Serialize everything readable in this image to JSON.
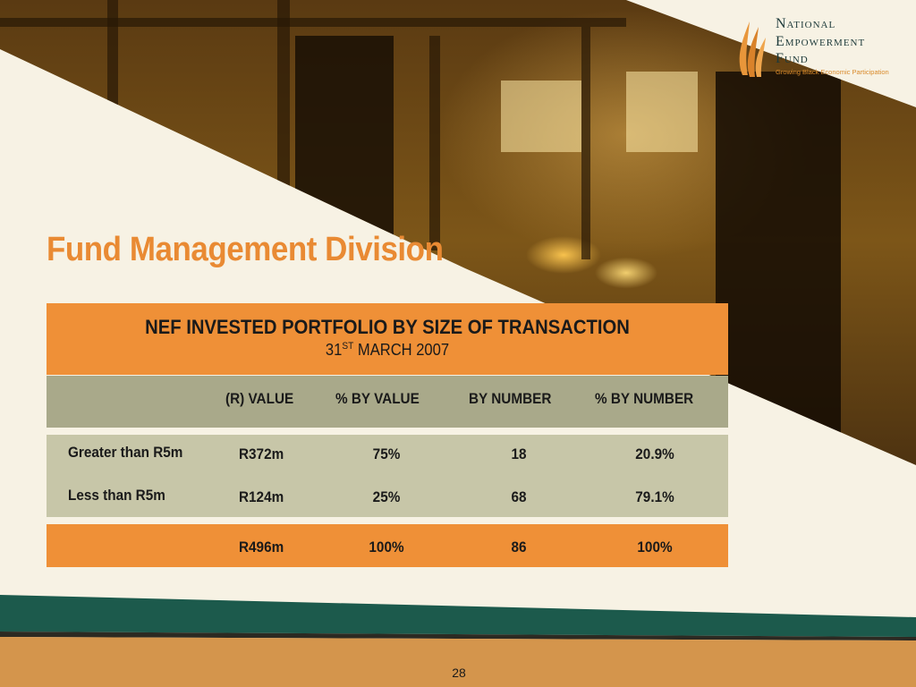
{
  "logo": {
    "line1": "National",
    "line2": "Empowerment",
    "line3": "Fund",
    "tagline": "Growing Black Economic Participation",
    "icon": "flame-logo-icon"
  },
  "title": "Fund Management Division",
  "table": {
    "heading": "NEF INVESTED PORTFOLIO BY SIZE OF TRANSACTION",
    "date_day": "31",
    "date_suffix": "ST",
    "date_rest": " MARCH 2007",
    "columns": [
      "(R) VALUE",
      "% BY VALUE",
      "BY NUMBER",
      "% BY NUMBER"
    ],
    "rows": [
      {
        "label": "Greater than R5m",
        "value": "R372m",
        "pct_value": "75%",
        "number": "18",
        "pct_number": "20.9%"
      },
      {
        "label": "Less than R5m",
        "value": "R124m",
        "pct_value": "25%",
        "number": "68",
        "pct_number": "79.1%"
      }
    ],
    "total": {
      "value": "R496m",
      "pct_value": "100%",
      "number": "86",
      "pct_number": "100%"
    }
  },
  "page_number": "28",
  "colors": {
    "orange": "#ef9037",
    "olive": "#a9a98a",
    "light_olive": "#c7c6a8",
    "green_stripe": "#1c5a4c",
    "title": "#e98a33"
  }
}
